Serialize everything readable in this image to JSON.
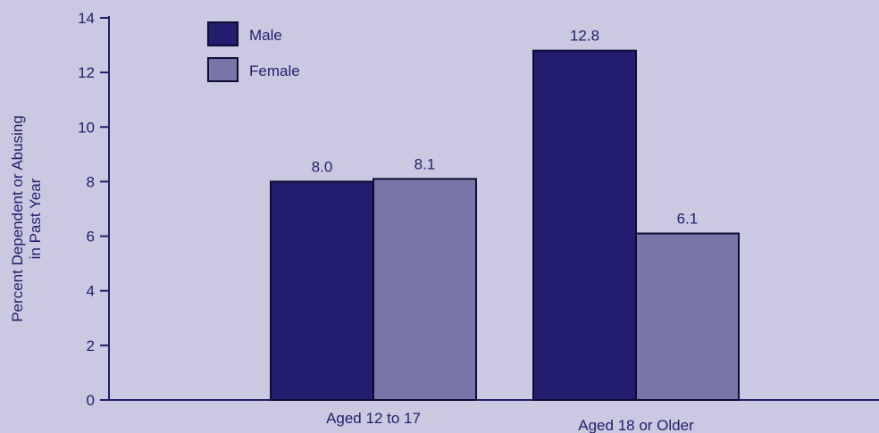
{
  "chart_data": {
    "type": "bar",
    "categories": [
      "Aged 12 to 17",
      "Aged 18 or Older"
    ],
    "series": [
      {
        "name": "Male",
        "values": [
          8.0,
          12.8
        ],
        "color": "#221d6e"
      },
      {
        "name": "Female",
        "values": [
          8.1,
          6.1
        ],
        "color": "#7875a8"
      }
    ],
    "value_labels": [
      [
        "8.0",
        "12.8"
      ],
      [
        "8.1",
        "6.1"
      ]
    ],
    "ylabel_lines": [
      "Percent Dependent or Abusing",
      "in Past Year"
    ],
    "xlabel": "",
    "ylim": [
      0,
      14
    ],
    "yticks": [
      0,
      2,
      4,
      6,
      8,
      10,
      12,
      14
    ],
    "grid": false,
    "legend_position": "top-left",
    "axis_color": "#231d6b",
    "background": "#cbc9e1"
  }
}
